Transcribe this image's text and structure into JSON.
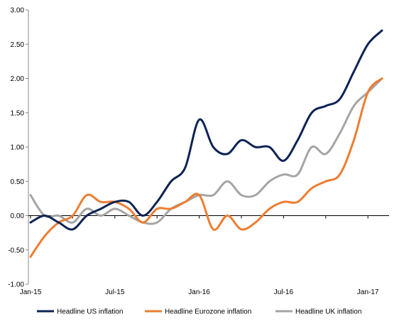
{
  "chart_data": {
    "type": "line",
    "title": "",
    "xlabel": "",
    "ylabel": "",
    "ylim": [
      -1.0,
      3.0
    ],
    "y_ticks": [
      "3.00",
      "2.50",
      "2.00",
      "1.50",
      "1.00",
      "0.50",
      "0.00",
      "-0.50",
      "-1.00"
    ],
    "x_ticks": [
      "Jan-15",
      "Jul-15",
      "Jan-16",
      "Jul-16",
      "Jan-17"
    ],
    "grid": false,
    "legend_position": "bottom",
    "x": [
      "2015-01",
      "2015-02",
      "2015-03",
      "2015-04",
      "2015-05",
      "2015-06",
      "2015-07",
      "2015-08",
      "2015-09",
      "2015-10",
      "2015-11",
      "2015-12",
      "2016-01",
      "2016-02",
      "2016-03",
      "2016-04",
      "2016-05",
      "2016-06",
      "2016-07",
      "2016-08",
      "2016-09",
      "2016-10",
      "2016-11",
      "2016-12",
      "2017-01",
      "2017-02"
    ],
    "series": [
      {
        "name": "Headline US inflation",
        "color": "#0d2355",
        "values": [
          -0.1,
          0.0,
          -0.1,
          -0.2,
          0.0,
          0.1,
          0.2,
          0.2,
          0.0,
          0.2,
          0.5,
          0.7,
          1.4,
          1.0,
          0.9,
          1.1,
          1.0,
          1.0,
          0.8,
          1.1,
          1.5,
          1.6,
          1.7,
          2.1,
          2.5,
          2.7
        ]
      },
      {
        "name": "Headline Eurozone inflation",
        "color": "#ed7d31",
        "values": [
          -0.6,
          -0.3,
          -0.1,
          0.0,
          0.3,
          0.2,
          0.2,
          0.1,
          -0.1,
          0.1,
          0.1,
          0.2,
          0.3,
          -0.2,
          0.0,
          -0.2,
          -0.1,
          0.1,
          0.2,
          0.2,
          0.4,
          0.5,
          0.6,
          1.1,
          1.8,
          2.0
        ]
      },
      {
        "name": "Headline UK inflation",
        "color": "#a5a5a5",
        "values": [
          0.3,
          0.0,
          0.0,
          -0.1,
          0.1,
          0.0,
          0.1,
          0.0,
          -0.1,
          -0.1,
          0.1,
          0.2,
          0.3,
          0.3,
          0.5,
          0.3,
          0.3,
          0.5,
          0.6,
          0.6,
          1.0,
          0.9,
          1.2,
          1.6,
          1.8,
          2.0
        ]
      }
    ]
  }
}
